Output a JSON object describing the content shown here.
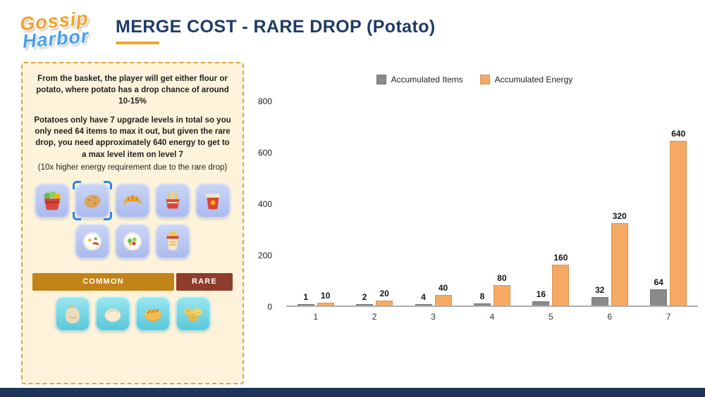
{
  "colors": {
    "logo_orange": "#f2a226",
    "logo_blue": "#4a9fe8",
    "title_navy": "#1d3b66",
    "accent_orange": "#f0a32a",
    "common_gold": "#c28418",
    "rare_maroon": "#8e3c2c",
    "footer_navy": "#1c3459"
  },
  "header": {
    "logo_line1": "Gossip",
    "logo_line2": "Harbor",
    "title": "MERGE COST - RARE DROP (Potato)"
  },
  "panel": {
    "p1": "From the basket, the player will get either flour or potato, where potato has a drop chance of around 10-15%",
    "p2": "Potatoes only have 7 upgrade levels in total so you only need 64 items to max it out, but given the rare drop, you need approximately 640 energy to get to a max level item on level 7",
    "p3": "(10x higher energy requirement due to the rare drop)",
    "common_label": "COMMON",
    "rare_label": "RARE",
    "common_items_row1": [
      "vegetable-basket",
      "potato-selected",
      "croissant",
      "fries",
      "takeout-box"
    ],
    "common_items_row2": [
      "breakfast-plate",
      "salad-plate",
      "noodle-cup"
    ],
    "rare_items": [
      "flour-sack",
      "dough-ball",
      "bread-loaf",
      "potatoes"
    ]
  },
  "chart_data": {
    "type": "bar",
    "title": "",
    "categories": [
      "1",
      "2",
      "3",
      "4",
      "5",
      "6",
      "7"
    ],
    "series": [
      {
        "name": "Accumulated Items",
        "color": "#8a8a8a",
        "values": [
          1,
          2,
          4,
          8,
          16,
          32,
          64
        ]
      },
      {
        "name": "Accumulated Energy",
        "color": "#f5a962",
        "values": [
          10,
          20,
          40,
          80,
          160,
          320,
          640
        ]
      }
    ],
    "xlabel": "",
    "ylabel": "",
    "ylim": [
      0,
      800
    ],
    "yticks": [
      0,
      200,
      400,
      600,
      800
    ],
    "grid": false,
    "legend_position": "top-center"
  }
}
